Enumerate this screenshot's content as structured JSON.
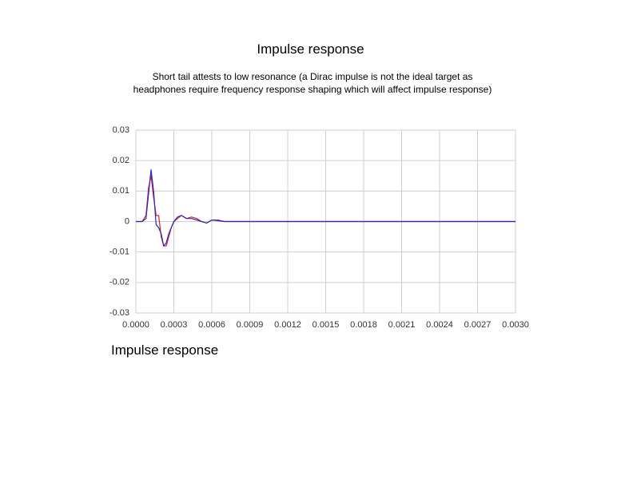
{
  "chart_data": {
    "type": "line",
    "title": "Impulse response",
    "subtitle": "Short tail attests to low resonance (a Dirac impulse is not the ideal target as headphones require frequency response shaping which will affect impulse response)",
    "caption": "Impulse response",
    "x": [
      0,
      5e-05,
      8e-05,
      0.0001,
      0.00012,
      0.00014,
      0.00016,
      0.00018,
      0.0002,
      0.00022,
      0.00024,
      0.00026,
      0.00028,
      0.0003,
      0.00033,
      0.00036,
      0.0004,
      0.00044,
      0.00048,
      0.00052,
      0.00056,
      0.0006,
      0.00065,
      0.0007,
      0.0008,
      0.001,
      0.0012,
      0.0015,
      0.0018,
      0.002,
      0.0025,
      0.003
    ],
    "series": [
      {
        "color": "#e02020",
        "values": [
          0,
          0,
          0.002,
          0.011,
          0.015,
          0.008,
          0.002,
          0.002,
          -0.005,
          -0.008,
          -0.008,
          -0.005,
          -0.002,
          0,
          0.001,
          0.002,
          0.001,
          0.0015,
          0.001,
          0,
          -0.0005,
          0.0005,
          0.0005,
          0,
          0,
          0,
          0,
          0,
          0,
          0,
          0,
          0
        ]
      },
      {
        "color": "#2424d0",
        "values": [
          0,
          0,
          0.001,
          0.009,
          0.017,
          0.01,
          -0.001,
          -0.002,
          -0.004,
          -0.008,
          -0.007,
          -0.004,
          -0.002,
          0,
          0.0015,
          0.002,
          0.001,
          0.001,
          0.0005,
          0,
          -0.0005,
          0.0005,
          0.0003,
          0,
          0,
          0,
          0,
          0,
          0,
          0,
          0,
          0
        ]
      }
    ],
    "xlim": [
      0,
      0.003
    ],
    "ylim": [
      -0.03,
      0.03
    ],
    "xticks": [
      {
        "value": 0,
        "label": "0.0000"
      },
      {
        "value": 0.0003,
        "label": "0.0003"
      },
      {
        "value": 0.0006,
        "label": "0.0006"
      },
      {
        "value": 0.0009,
        "label": "0.0009"
      },
      {
        "value": 0.0012,
        "label": "0.0012"
      },
      {
        "value": 0.0015,
        "label": "0.0015"
      },
      {
        "value": 0.0018,
        "label": "0.0018"
      },
      {
        "value": 0.0021,
        "label": "0.0021"
      },
      {
        "value": 0.0024,
        "label": "0.0024"
      },
      {
        "value": 0.0027,
        "label": "0.0027"
      },
      {
        "value": 0.003,
        "label": "0.0030"
      }
    ],
    "yticks": [
      -0.03,
      -0.02,
      -0.01,
      0,
      0.01,
      0.02,
      0.03
    ],
    "grid": true
  }
}
